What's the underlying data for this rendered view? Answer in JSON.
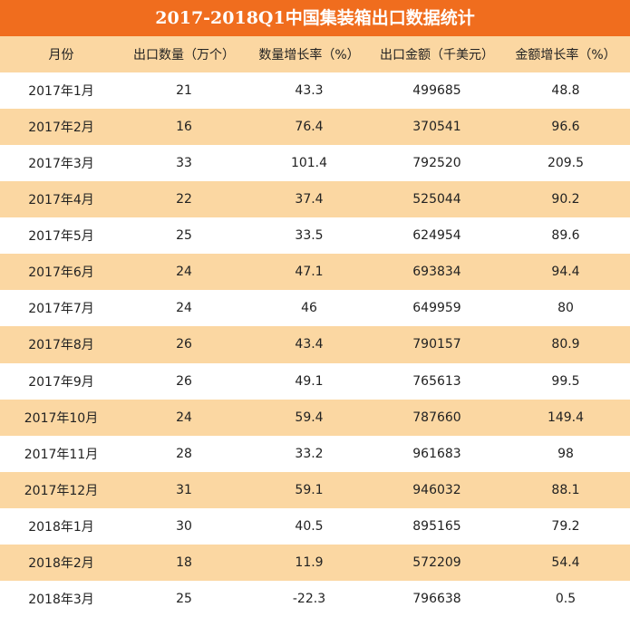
{
  "chart_data": {
    "type": "table",
    "title": "2017-2018Q1中国集装箱出口数据统计",
    "columns": [
      "月份",
      "出口数量（万个）",
      "数量增长率（%）",
      "出口金额（千美元）",
      "金额增长率（%）"
    ],
    "rows": [
      [
        "2017年1月",
        "21",
        "43.3",
        "499685",
        "48.8"
      ],
      [
        "2017年2月",
        "16",
        "76.4",
        "370541",
        "96.6"
      ],
      [
        "2017年3月",
        "33",
        "101.4",
        "792520",
        "209.5"
      ],
      [
        "2017年4月",
        "22",
        "37.4",
        "525044",
        "90.2"
      ],
      [
        "2017年5月",
        "25",
        "33.5",
        "624954",
        "89.6"
      ],
      [
        "2017年6月",
        "24",
        "47.1",
        "693834",
        "94.4"
      ],
      [
        "2017年7月",
        "24",
        "46",
        "649959",
        "80"
      ],
      [
        "2017年8月",
        "26",
        "43.4",
        "790157",
        "80.9"
      ],
      [
        "2017年9月",
        "26",
        "49.1",
        "765613",
        "99.5"
      ],
      [
        "2017年10月",
        "24",
        "59.4",
        "787660",
        "149.4"
      ],
      [
        "2017年11月",
        "28",
        "33.2",
        "961683",
        "98"
      ],
      [
        "2017年12月",
        "31",
        "59.1",
        "946032",
        "88.1"
      ],
      [
        "2018年1月",
        "30",
        "40.5",
        "895165",
        "79.2"
      ],
      [
        "2018年2月",
        "18",
        "11.9",
        "572209",
        "54.4"
      ],
      [
        "2018年3月",
        "25",
        "-22.3",
        "796638",
        "0.5"
      ]
    ],
    "colors": {
      "title_bg": "#f06d1e",
      "stripe": "#fbd7a2",
      "base": "#ffffff"
    }
  }
}
